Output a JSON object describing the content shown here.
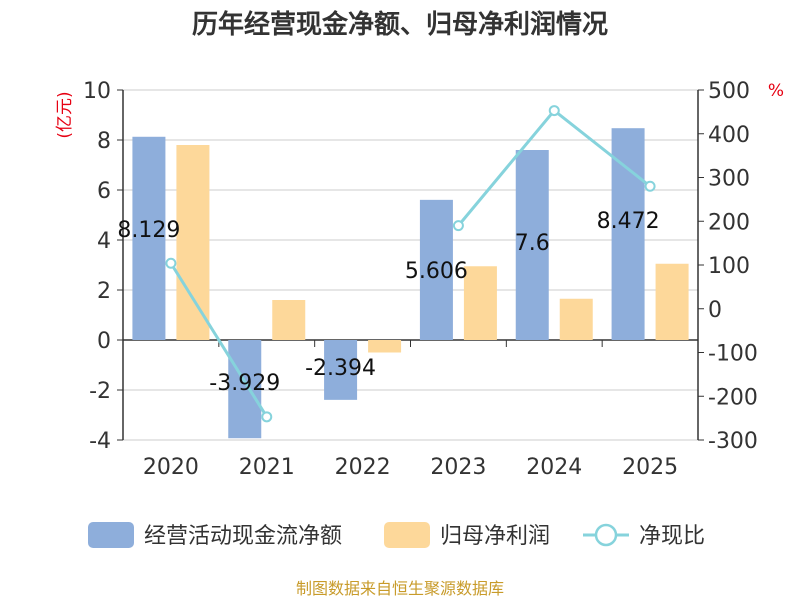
{
  "chart_data": {
    "type": "bar",
    "title": "历年经营现金净额、归母净利润情况",
    "categories": [
      "2020",
      "2021",
      "2022",
      "2023",
      "2024",
      "2025"
    ],
    "y_left": {
      "unit": "(亿元)",
      "ylim": [
        -4,
        10
      ],
      "ticks": [
        "10",
        "8",
        "6",
        "4",
        "2",
        "0",
        "-2",
        "-4"
      ]
    },
    "y_right": {
      "unit": "%",
      "ylim": [
        -300,
        500
      ],
      "ticks": [
        "500",
        "400",
        "300",
        "200",
        "100",
        "0",
        "-100",
        "-200",
        "-300"
      ]
    },
    "series": [
      {
        "name": "经营活动现金流净额",
        "kind": "bar",
        "axis": "left",
        "color": "#8eaedb",
        "values": [
          8.129,
          -3.929,
          -2.394,
          5.606,
          7.6,
          8.472
        ],
        "labels": [
          "8.129",
          "-3.929",
          "-2.394",
          "5.606",
          "7.6",
          "8.472"
        ]
      },
      {
        "name": "归母净利润",
        "kind": "bar",
        "axis": "left",
        "color": "#fdd89a",
        "values": [
          7.8,
          1.6,
          -0.5,
          2.95,
          1.65,
          3.05
        ]
      },
      {
        "name": "净现比",
        "kind": "line",
        "axis": "right",
        "color": "#86d3dc",
        "values": [
          104,
          -247,
          null,
          190,
          453,
          280
        ]
      }
    ],
    "grid": true,
    "legend": "bottom"
  },
  "source_note": "制图数据来自恒生聚源数据库",
  "colors": {
    "unit_left": "#e60012",
    "unit_right": "#e60012",
    "source": "#c89b2a",
    "grid": "#cccccc",
    "axis": "#333333"
  }
}
